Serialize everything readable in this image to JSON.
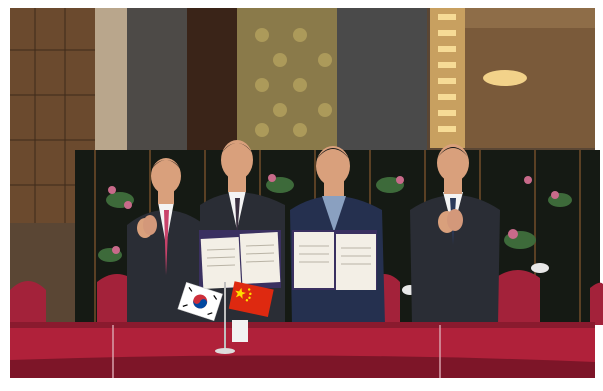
{
  "scene": {
    "colors": {
      "frame": "#ffffff",
      "wall_left": "#6b4a2e",
      "wall_pattern": "#8a7a4a",
      "wall_right": "#4a4a4a",
      "screen_panel": "#151a14",
      "screen_flowers_pink": "#c86a8a",
      "screen_leaves": "#3d6a3a",
      "table_cloth": "#b0213a",
      "table_cloth_dark": "#7d1528",
      "chair": "#a3223a",
      "suit_dark": "#2a2d35",
      "suit_navy": "#25304f",
      "skin": "#d9a07c",
      "hair": "#1a1a1a",
      "certificate": "#f3efe6",
      "folder": "#3a3060",
      "flag_china_red": "#de2910",
      "flag_china_star": "#ffde00",
      "flag_korea_red": "#cd2e3a",
      "flag_korea_blue": "#0047a0"
    },
    "flags": [
      "korea-flag",
      "china-flag"
    ],
    "people_count": 4,
    "documents_count": 2
  }
}
